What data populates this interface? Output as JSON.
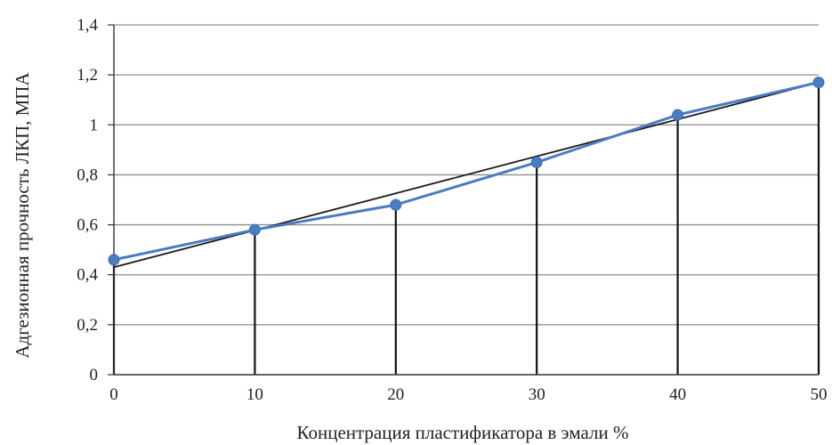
{
  "chart_data": {
    "type": "line",
    "title": "",
    "xlabel": "Концентрация  пластификатора  в эмали %",
    "ylabel": "Адгезионная  прочность  ЛКП,  МПА",
    "x": [
      0,
      10,
      20,
      30,
      40,
      50
    ],
    "xlim": [
      0,
      50
    ],
    "ylim": [
      0,
      1.4
    ],
    "x_ticks": [
      "0",
      "10",
      "20",
      "30",
      "40",
      "50"
    ],
    "y_ticks": [
      "0",
      "0,2",
      "0,4",
      "0,6",
      "0,8",
      "1",
      "1,2",
      "1,4"
    ],
    "y_tick_values": [
      0,
      0.2,
      0.4,
      0.6,
      0.8,
      1.0,
      1.2,
      1.4
    ],
    "grid": "horizontal",
    "drop_lines": true,
    "series": [
      {
        "values": [
          0.46,
          0.58,
          0.68,
          0.85,
          1.04,
          1.17
        ],
        "color": "#4a7cc4",
        "markers": true
      },
      {
        "values": [
          0.43,
          0.578,
          0.726,
          0.874,
          1.022,
          1.17
        ],
        "color": "#1a1a1a",
        "markers": false,
        "kind": "linear-trend"
      }
    ]
  }
}
